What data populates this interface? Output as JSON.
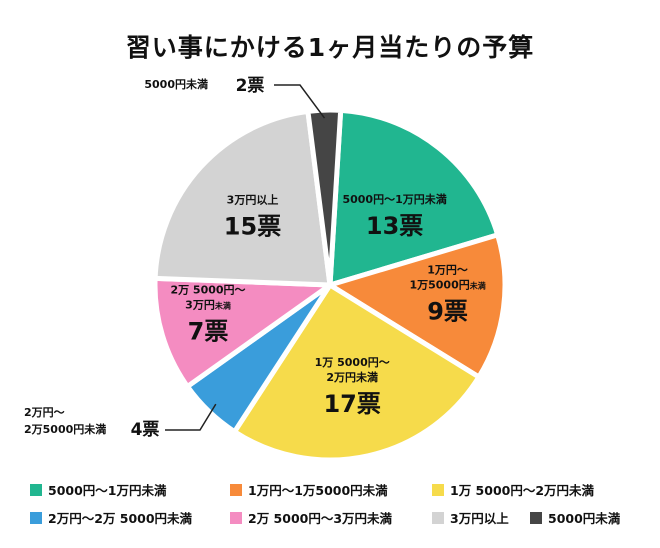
{
  "chart_data": {
    "type": "pie",
    "title": "習い事にかける1ヶ月当たりの予算",
    "unit": "票",
    "categories": [
      "5000円〜1万円未満",
      "1万円〜1万5000円未満",
      "1万 5000円〜2万円未満",
      "2万円〜2万 5000円未満",
      "2万 5000円〜3万円未満",
      "3万円以上",
      "5000円未満"
    ],
    "values": [
      13,
      9,
      17,
      4,
      7,
      15,
      2
    ],
    "colors": [
      "#21b690",
      "#f78a3a",
      "#f6db4b",
      "#3a9ddb",
      "#f48cc1",
      "#d3d3d3",
      "#454545"
    ],
    "slice_labels": [
      {
        "lines": [
          "5000円〜1万円未満"
        ],
        "value": "13票"
      },
      {
        "lines": [
          "1万円〜",
          "1万5000円",
          "未満"
        ],
        "value": "9票"
      },
      {
        "lines": [
          "1万 5000円〜",
          "2万円未満"
        ],
        "value": "17票"
      },
      {
        "lines": [
          "2万円〜",
          "2万5000円未満"
        ],
        "value": "4票"
      },
      {
        "lines": [
          "2万 5000円〜",
          "3万円",
          "未満"
        ],
        "value": "7票"
      },
      {
        "lines": [
          "3万円以上"
        ],
        "value": "15票"
      },
      {
        "lines": [
          "5000円未満"
        ],
        "value": "2票"
      }
    ],
    "legend_position": "bottom",
    "legend": [
      "5000円〜1万円未満",
      "1万円〜1万5000円未満",
      "1万 5000円〜2万円未満",
      "2万円〜2万 5000円未満",
      "2万 5000円〜3万円未満",
      "3万円以上",
      "5000円未満"
    ]
  }
}
